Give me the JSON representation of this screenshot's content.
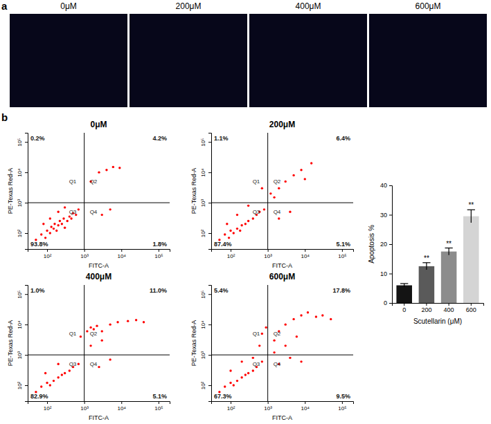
{
  "chart_data": [
    {
      "type": "image",
      "panel_label": "a",
      "title": "0μM"
    },
    {
      "type": "image",
      "title": "200μM"
    },
    {
      "type": "image",
      "title": "400μM"
    },
    {
      "type": "image",
      "title": "600μM"
    },
    {
      "type": "scatter",
      "panel_label": "b",
      "title": "0μM",
      "x_label": "FITC-A",
      "y_label": "PE-Texas Red-A",
      "log": true,
      "color": "#ff0000",
      "marker": "circle",
      "xlim": [
        30,
        200000
      ],
      "ylim": [
        30,
        200000
      ],
      "xticks": [
        {
          "value": 100,
          "label": "10²"
        },
        {
          "value": 1000,
          "label": "10³"
        },
        {
          "value": 10000,
          "label": "10⁴"
        },
        {
          "value": 100000,
          "label": "10⁵"
        }
      ],
      "yticks": [
        {
          "value": 100,
          "label": "10²"
        },
        {
          "value": 1000,
          "label": "10³"
        },
        {
          "value": 10000,
          "label": "10⁴"
        },
        {
          "value": 100000,
          "label": "10⁵"
        }
      ],
      "gate_x": 1000,
      "gate_y": 1000,
      "quadrant_names": [
        "Q1",
        "Q2",
        "Q3",
        "Q4"
      ],
      "quadrant_values": [
        0.2,
        4.2,
        93.8,
        1.8
      ],
      "quadrant_value_labels": [
        "0.2%",
        "4.2%",
        "93.8%",
        "1.8%"
      ],
      "x": [
        50,
        70,
        90,
        100,
        120,
        130,
        150,
        160,
        180,
        200,
        220,
        250,
        280,
        300,
        350,
        400,
        450,
        500,
        600,
        700,
        80,
        120,
        200,
        300,
        1500,
        2500,
        4000,
        6000,
        9000,
        3000,
        5000
      ],
      "y": [
        60,
        90,
        70,
        120,
        100,
        160,
        140,
        200,
        120,
        180,
        250,
        200,
        300,
        150,
        250,
        350,
        300,
        450,
        400,
        600,
        200,
        300,
        500,
        700,
        5000,
        10000,
        12000,
        15000,
        14000,
        400,
        600
      ]
    },
    {
      "type": "scatter",
      "title": "200μM",
      "x_label": "FITC-A",
      "y_label": "PE-Texas Red-A",
      "log": true,
      "color": "#ff0000",
      "marker": "circle",
      "xlim": [
        30,
        200000
      ],
      "ylim": [
        30,
        200000
      ],
      "xticks": [
        {
          "value": 100,
          "label": "10²"
        },
        {
          "value": 1000,
          "label": "10³"
        },
        {
          "value": 10000,
          "label": "10⁴"
        },
        {
          "value": 100000,
          "label": "10⁵"
        }
      ],
      "yticks": [
        {
          "value": 100,
          "label": "10²"
        },
        {
          "value": 1000,
          "label": "10³"
        },
        {
          "value": 10000,
          "label": "10⁴"
        },
        {
          "value": 100000,
          "label": "10⁵"
        }
      ],
      "gate_x": 1000,
      "gate_y": 1000,
      "quadrant_names": [
        "Q1",
        "Q2",
        "Q3",
        "Q4"
      ],
      "quadrant_values": [
        1.1,
        6.4,
        87.4,
        5.1
      ],
      "quadrant_value_labels": [
        "1.1%",
        "6.4%",
        "87.4%",
        "5.1%"
      ],
      "x": [
        50,
        70,
        90,
        100,
        120,
        150,
        180,
        200,
        250,
        300,
        400,
        500,
        600,
        800,
        80,
        150,
        300,
        1200,
        2000,
        3000,
        5000,
        8000,
        15000,
        2000,
        4000,
        1500,
        10000,
        700
      ],
      "y": [
        60,
        90,
        70,
        120,
        100,
        140,
        120,
        180,
        200,
        250,
        300,
        400,
        500,
        600,
        200,
        400,
        800,
        2000,
        3000,
        5000,
        8000,
        12000,
        20000,
        300,
        500,
        1500,
        6000,
        3000
      ]
    },
    {
      "type": "scatter",
      "title": "400μM",
      "x_label": "FITC-A",
      "y_label": "PE-Texas Red-A",
      "log": true,
      "color": "#ff0000",
      "marker": "circle",
      "xlim": [
        30,
        200000
      ],
      "ylim": [
        30,
        200000
      ],
      "xticks": [
        {
          "value": 100,
          "label": "10²"
        },
        {
          "value": 1000,
          "label": "10³"
        },
        {
          "value": 10000,
          "label": "10⁴"
        },
        {
          "value": 100000,
          "label": "10⁵"
        }
      ],
      "yticks": [
        {
          "value": 100,
          "label": "10²"
        },
        {
          "value": 1000,
          "label": "10³"
        },
        {
          "value": 10000,
          "label": "10⁴"
        },
        {
          "value": 100000,
          "label": "10⁵"
        }
      ],
      "gate_x": 1000,
      "gate_y": 1000,
      "quadrant_names": [
        "Q1",
        "Q2",
        "Q3",
        "Q4"
      ],
      "quadrant_values": [
        1.0,
        11.0,
        82.9,
        5.1
      ],
      "quadrant_value_labels": [
        "1.0%",
        "11.0%",
        "82.9%",
        "5.1%"
      ],
      "x": [
        50,
        70,
        100,
        120,
        150,
        200,
        250,
        300,
        400,
        500,
        700,
        90,
        200,
        1200,
        1500,
        1800,
        2200,
        3000,
        5000,
        8000,
        15000,
        25000,
        40000,
        1500,
        3000,
        2500,
        5000,
        800
      ],
      "y": [
        60,
        90,
        120,
        100,
        140,
        180,
        220,
        250,
        300,
        400,
        500,
        250,
        500,
        6000,
        8000,
        7000,
        9000,
        6000,
        10000,
        12000,
        13000,
        14000,
        12000,
        2000,
        3000,
        400,
        700,
        4000
      ]
    },
    {
      "type": "scatter",
      "title": "600μM",
      "x_label": "FITC-A",
      "y_label": "PE-Texas Red-A",
      "log": true,
      "color": "#ff0000",
      "marker": "circle",
      "xlim": [
        30,
        200000
      ],
      "ylim": [
        30,
        200000
      ],
      "xticks": [
        {
          "value": 100,
          "label": "10²"
        },
        {
          "value": 1000,
          "label": "10³"
        },
        {
          "value": 10000,
          "label": "10⁴"
        },
        {
          "value": 100000,
          "label": "10⁵"
        }
      ],
      "yticks": [
        {
          "value": 100,
          "label": "10²"
        },
        {
          "value": 1000,
          "label": "10³"
        },
        {
          "value": 10000,
          "label": "10⁴"
        },
        {
          "value": 100000,
          "label": "10⁵"
        }
      ],
      "gate_x": 1000,
      "gate_y": 1000,
      "quadrant_names": [
        "Q1",
        "Q2",
        "Q3",
        "Q4"
      ],
      "quadrant_values": [
        5.4,
        17.8,
        67.3,
        9.5
      ],
      "quadrant_value_labels": [
        "5.4%",
        "17.8%",
        "67.3%",
        "9.5%"
      ],
      "x": [
        50,
        70,
        100,
        120,
        150,
        200,
        250,
        300,
        400,
        500,
        700,
        100,
        200,
        400,
        600,
        700,
        900,
        1500,
        2000,
        3000,
        5000,
        8000,
        12000,
        20000,
        30000,
        50000,
        2000,
        4000,
        8000,
        1500,
        3000,
        6000
      ],
      "y": [
        60,
        90,
        120,
        100,
        140,
        180,
        220,
        250,
        300,
        400,
        600,
        300,
        600,
        800,
        2000,
        5000,
        8000,
        3000,
        6000,
        10000,
        15000,
        20000,
        25000,
        18000,
        20000,
        15000,
        500,
        800,
        600,
        1200,
        2000,
        4000
      ]
    },
    {
      "type": "bar",
      "x_label": "Scutellarin (μM)",
      "y_label": "Apoptosis %",
      "categories": [
        "0",
        "200",
        "400",
        "600"
      ],
      "values": [
        6.0,
        12.5,
        17.5,
        29.5
      ],
      "errors": [
        0.6,
        1.2,
        1.2,
        2.2
      ],
      "significance": [
        null,
        "**",
        "**",
        "**"
      ],
      "colors": [
        "#141414",
        "#5a5a5a",
        "#8c8c8c",
        "#d4d4d4"
      ],
      "ylim": [
        0,
        40
      ],
      "yticks": [
        0,
        10,
        20,
        30,
        40
      ]
    }
  ]
}
